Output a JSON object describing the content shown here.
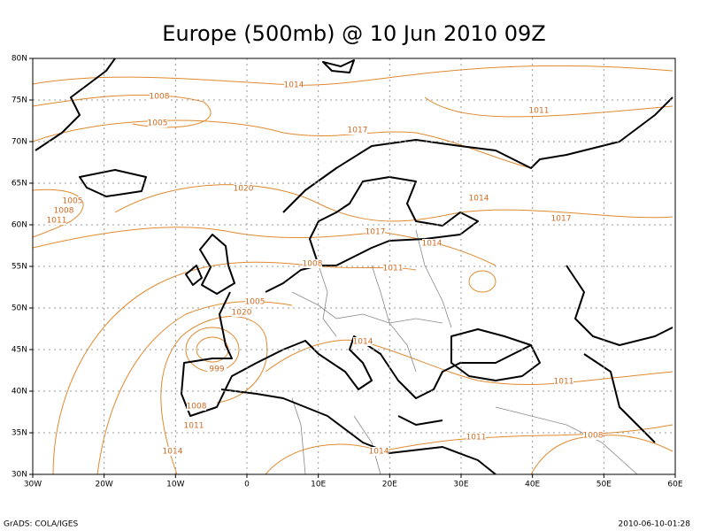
{
  "title": "Europe (500mb) @ 10 Jun 2010 09Z",
  "lon_labels": [
    "30W",
    "20W",
    "10W",
    "0",
    "10E",
    "20E",
    "30E",
    "40E",
    "50E",
    "60E"
  ],
  "lat_labels": [
    "30N",
    "35N",
    "40N",
    "45N",
    "50N",
    "55N",
    "60N",
    "65N",
    "70N",
    "75N",
    "80N"
  ],
  "contour_labels": [
    "1008",
    "1005",
    "1014",
    "1011",
    "1017",
    "1020",
    "1005",
    "1008",
    "1011",
    "1014",
    "1017",
    "1017",
    "1014",
    "1008",
    "1011",
    "1005",
    "1020",
    "1014",
    "999",
    "1011",
    "1008",
    "1011",
    "1011",
    "1008",
    "1014",
    "1014"
  ],
  "footer": {
    "left": "GrADS: COLA/IGES",
    "right": "2010-06-10-01:28"
  }
}
